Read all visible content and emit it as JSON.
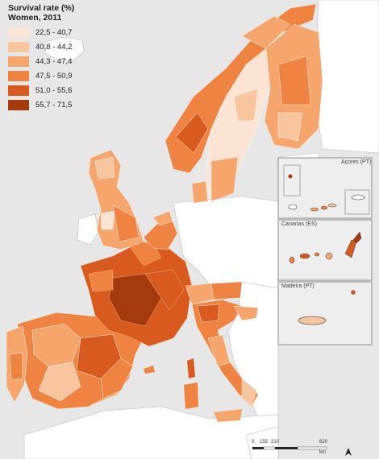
{
  "legend": {
    "title": "Survival rate (%)",
    "subtitle": "Women, 2011",
    "classes": [
      {
        "label": "22,5 - 40,7",
        "color": "#fbe4d3"
      },
      {
        "label": "40,8 - 44,2",
        "color": "#f9c59f"
      },
      {
        "label": "44,3 - 47,4",
        "color": "#f6a66d"
      },
      {
        "label": "47,5 - 50,9",
        "color": "#ef8442"
      },
      {
        "label": "51,0 - 55,6",
        "color": "#d85a1e"
      },
      {
        "label": "55,7 - 71,5",
        "color": "#a53a0e"
      }
    ]
  },
  "insets": {
    "azores": "Açores (PT)",
    "canarias": "Canarias (ES)",
    "madeira": "Madeira (PT)"
  },
  "scale_bar": {
    "ticks": [
      "0",
      "155",
      "310",
      "620"
    ],
    "unit": "km"
  },
  "colors": {
    "sea": "#e7e7e7",
    "non_covered_land": "#ffffff",
    "border": "#555555"
  }
}
